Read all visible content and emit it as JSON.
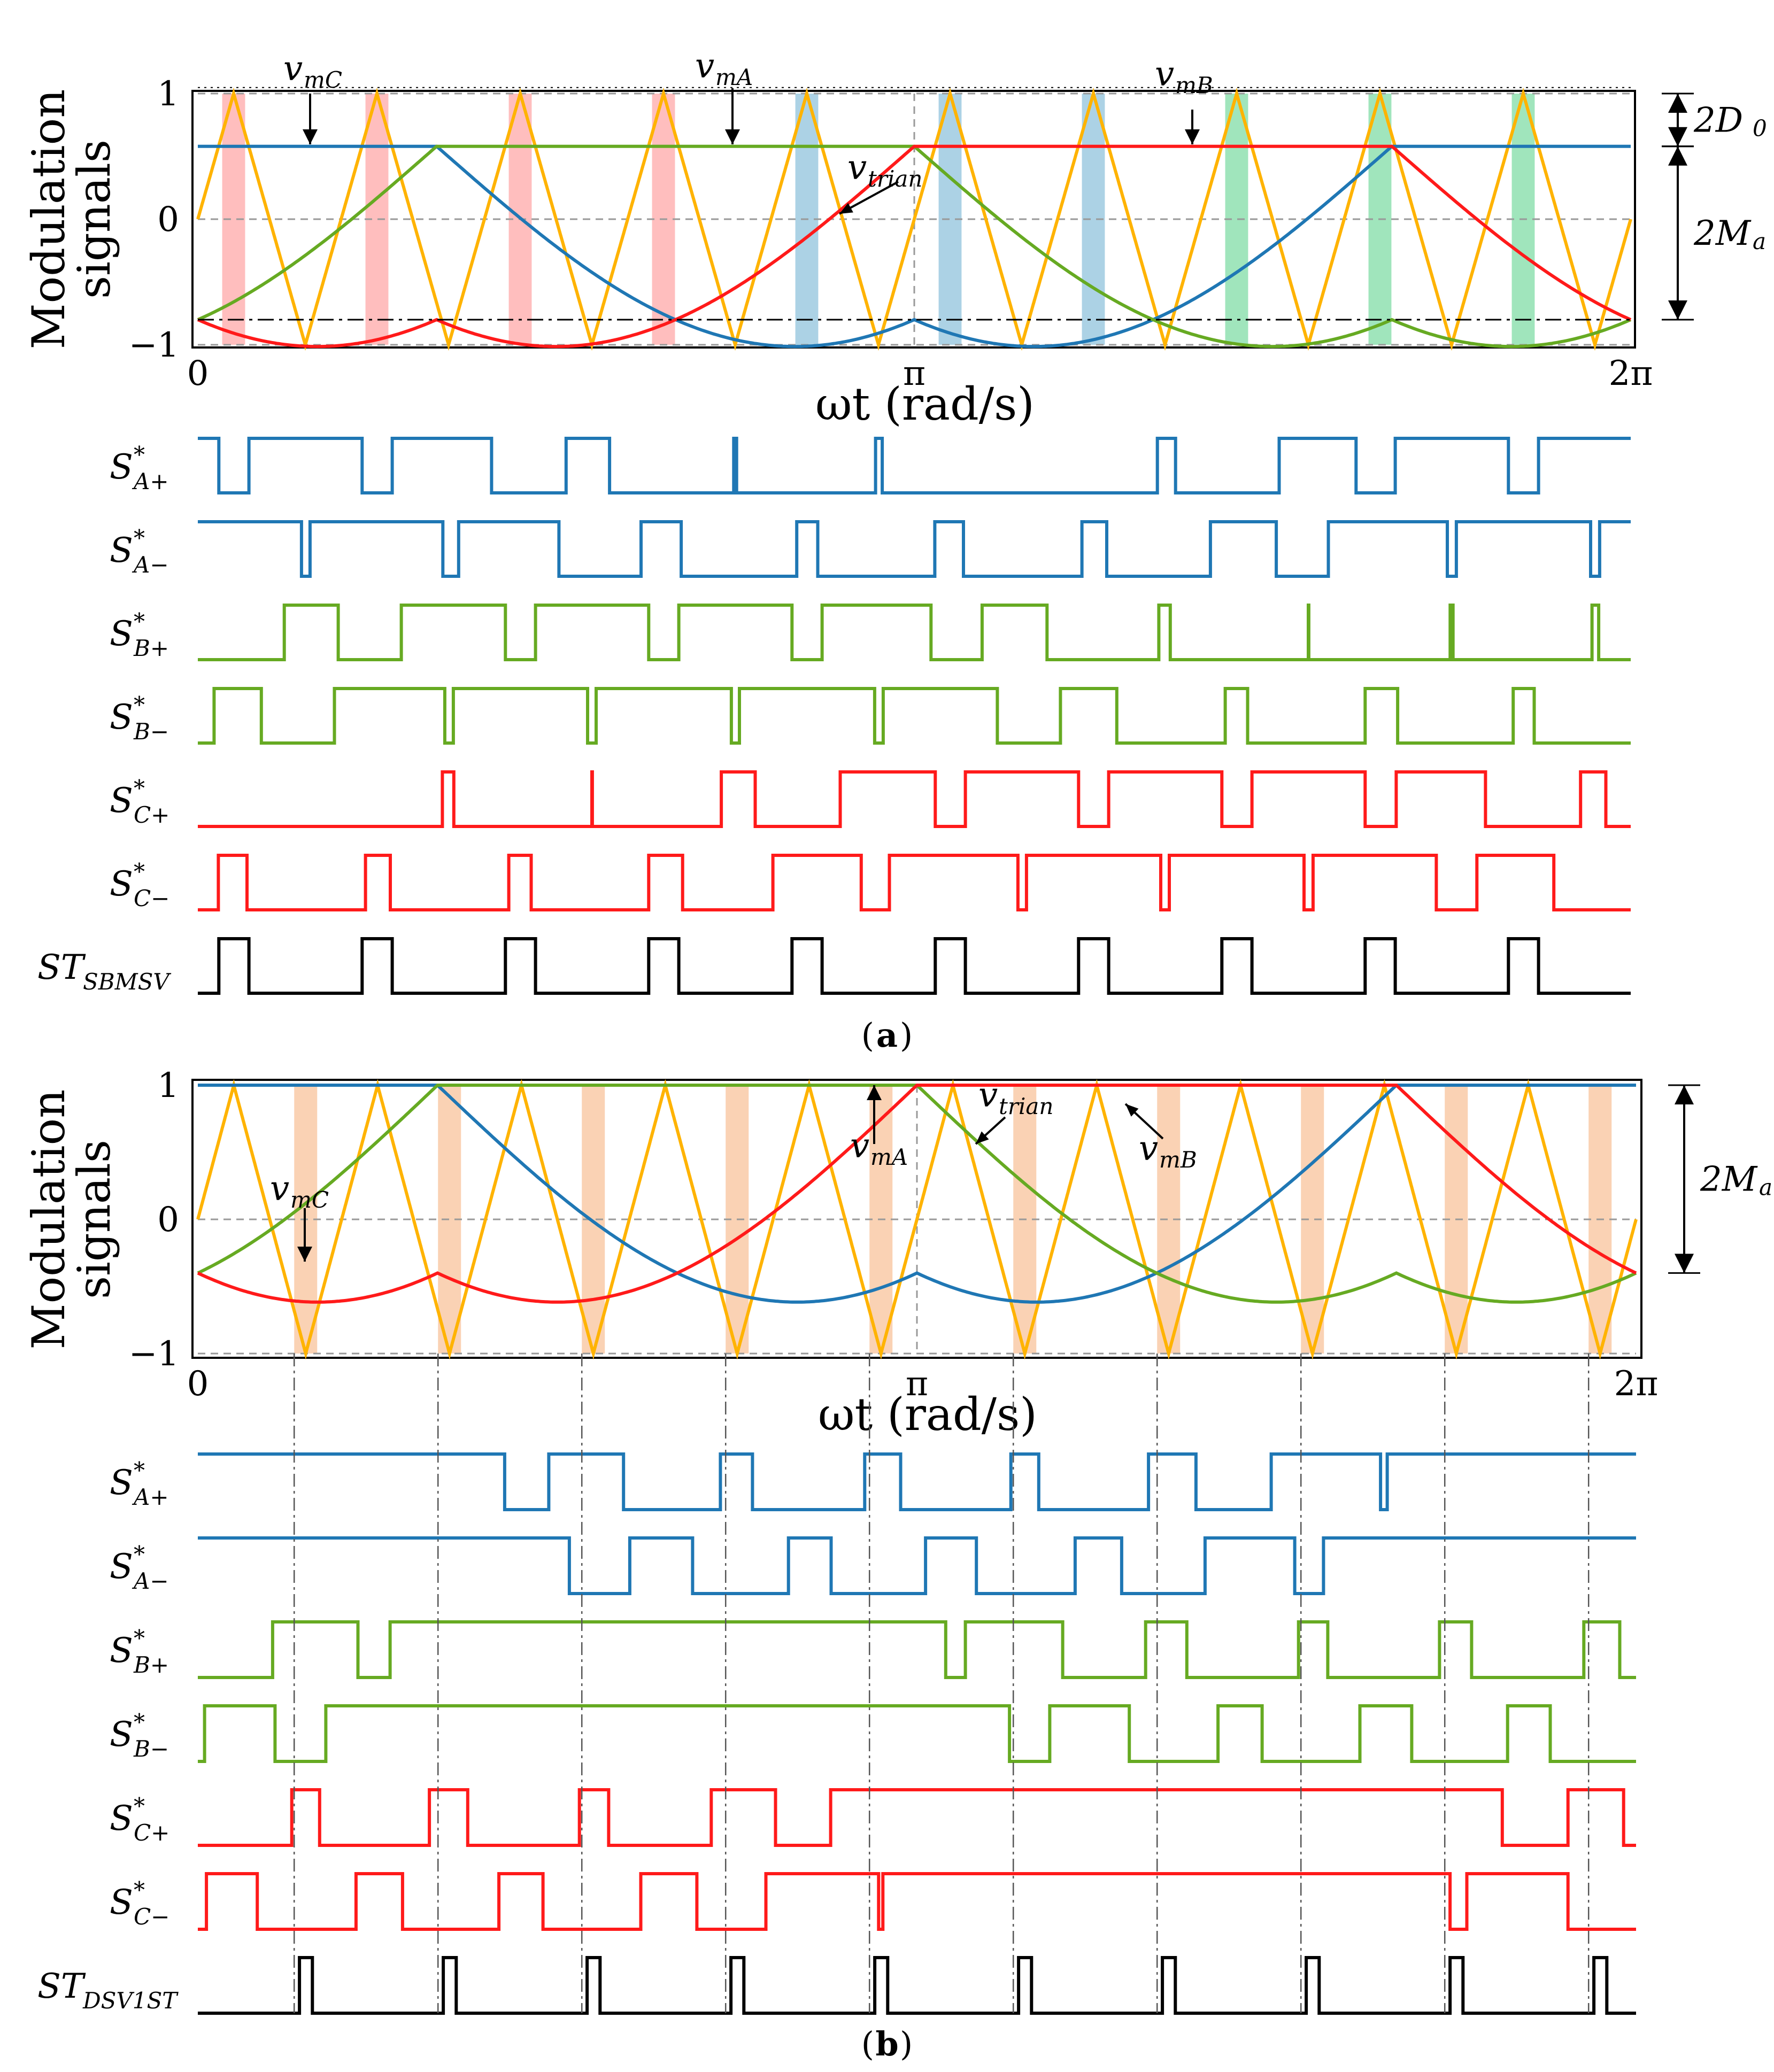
{
  "colors": {
    "phase_A": "#1f77b4",
    "phase_B": "#66aa22",
    "phase_C": "#ff1a1a",
    "carrier": "#ffb300",
    "shoot_through": "#000000",
    "highlight_C": "#ffb3b3",
    "highlight_A": "#9ecae1",
    "highlight_B": "#8fe0b0",
    "highlight_b": "#f9caa7",
    "transition_b": "#e0e860"
  },
  "panels": [
    {
      "id": "a",
      "caption_letter": "a",
      "ylabel_line1": "Modulation",
      "ylabel_line2": "signals",
      "xlabel": "ωt (rad/s)",
      "xticks": [
        "0",
        "π",
        "2π"
      ],
      "yticks": [
        "1",
        "0",
        "−1"
      ],
      "dim_labels": [
        "2D",
        "0",
        "2M",
        "a"
      ],
      "signal_labels": [
        {
          "main": "v",
          "sub": "mC"
        },
        {
          "main": "v",
          "sub": "mA"
        },
        {
          "main": "v",
          "sub": "mB"
        },
        {
          "main": "v",
          "sub": "trian"
        }
      ],
      "gate_labels": [
        {
          "main": "S",
          "sub": "A+"
        },
        {
          "main": "S",
          "sub": "A−"
        },
        {
          "main": "S",
          "sub": "B+"
        },
        {
          "main": "S",
          "sub": "B−"
        },
        {
          "main": "S",
          "sub": "C+"
        },
        {
          "main": "S",
          "sub": "C−"
        },
        {
          "main": "ST",
          "sub": "SBMSV"
        }
      ]
    },
    {
      "id": "b",
      "caption_letter": "b",
      "ylabel_line1": "Modulation",
      "ylabel_line2": "signals",
      "xlabel": "ωt (rad/s)",
      "xticks": [
        "0",
        "π",
        "2π"
      ],
      "yticks": [
        "1",
        "0",
        "−1"
      ],
      "dim_labels": [
        "2M",
        "a"
      ],
      "signal_labels": [
        {
          "main": "v",
          "sub": "mC"
        },
        {
          "main": "v",
          "sub": "mA"
        },
        {
          "main": "v",
          "sub": "trian"
        },
        {
          "main": "v",
          "sub": "mB"
        }
      ],
      "gate_labels": [
        {
          "main": "S",
          "sub": "A+"
        },
        {
          "main": "S",
          "sub": "A−"
        },
        {
          "main": "S",
          "sub": "B+"
        },
        {
          "main": "S",
          "sub": "B−"
        },
        {
          "main": "S",
          "sub": "C+"
        },
        {
          "main": "S",
          "sub": "C−"
        },
        {
          "main": "ST",
          "sub": "DSV1ST"
        }
      ]
    }
  ],
  "chart_data": [
    {
      "type": "line",
      "panel": "a",
      "x_range": [
        0,
        6.2832
      ],
      "ylim": [
        -1,
        1
      ],
      "carrier": {
        "name": "v_trian",
        "type": "triangle",
        "periods": 10,
        "amplitude": 1,
        "start_value": 0
      },
      "modulation": {
        "peak_value": 0.58,
        "min_value": -0.8,
        "clamp_max": 0.58,
        "series": [
          {
            "name": "v_mA",
            "phase_deg": 0
          },
          {
            "name": "v_mB",
            "phase_deg": -120
          },
          {
            "name": "v_mC",
            "phase_deg": 120
          }
        ]
      },
      "dimension_marks": {
        "2D0_range": [
          0.58,
          1.0
        ],
        "2Ma_range": [
          -0.8,
          0.58
        ]
      },
      "highlight_phase_by_sector": [
        "C",
        "C",
        "C",
        "C",
        "A",
        "A",
        "A",
        "B",
        "B",
        "B"
      ],
      "gate_signals": [
        "S*A+",
        "S*A−",
        "S*B+",
        "S*B−",
        "S*C+",
        "S*C−",
        "ST_SBMSV"
      ],
      "shoot_through_pulses_per_cycle": 10
    },
    {
      "type": "line",
      "panel": "b",
      "x_range": [
        0,
        6.2832
      ],
      "ylim": [
        -1,
        1
      ],
      "carrier": {
        "name": "v_trian",
        "type": "triangle",
        "periods": 10,
        "amplitude": 1,
        "start_value": 0
      },
      "modulation": {
        "peak_value": 1.0,
        "min_value": -0.4,
        "clamp_max": 1.0,
        "series": [
          {
            "name": "v_mA",
            "phase_deg": 0
          },
          {
            "name": "v_mB",
            "phase_deg": -120
          },
          {
            "name": "v_mC",
            "phase_deg": 120
          }
        ]
      },
      "dimension_marks": {
        "2Ma_range": [
          -0.4,
          1.0
        ]
      },
      "gate_signals": [
        "S*A+",
        "S*A−",
        "S*B+",
        "S*B−",
        "S*C+",
        "S*C−",
        "ST_DSV1ST"
      ],
      "shoot_through_pulses_per_cycle": 10
    }
  ]
}
